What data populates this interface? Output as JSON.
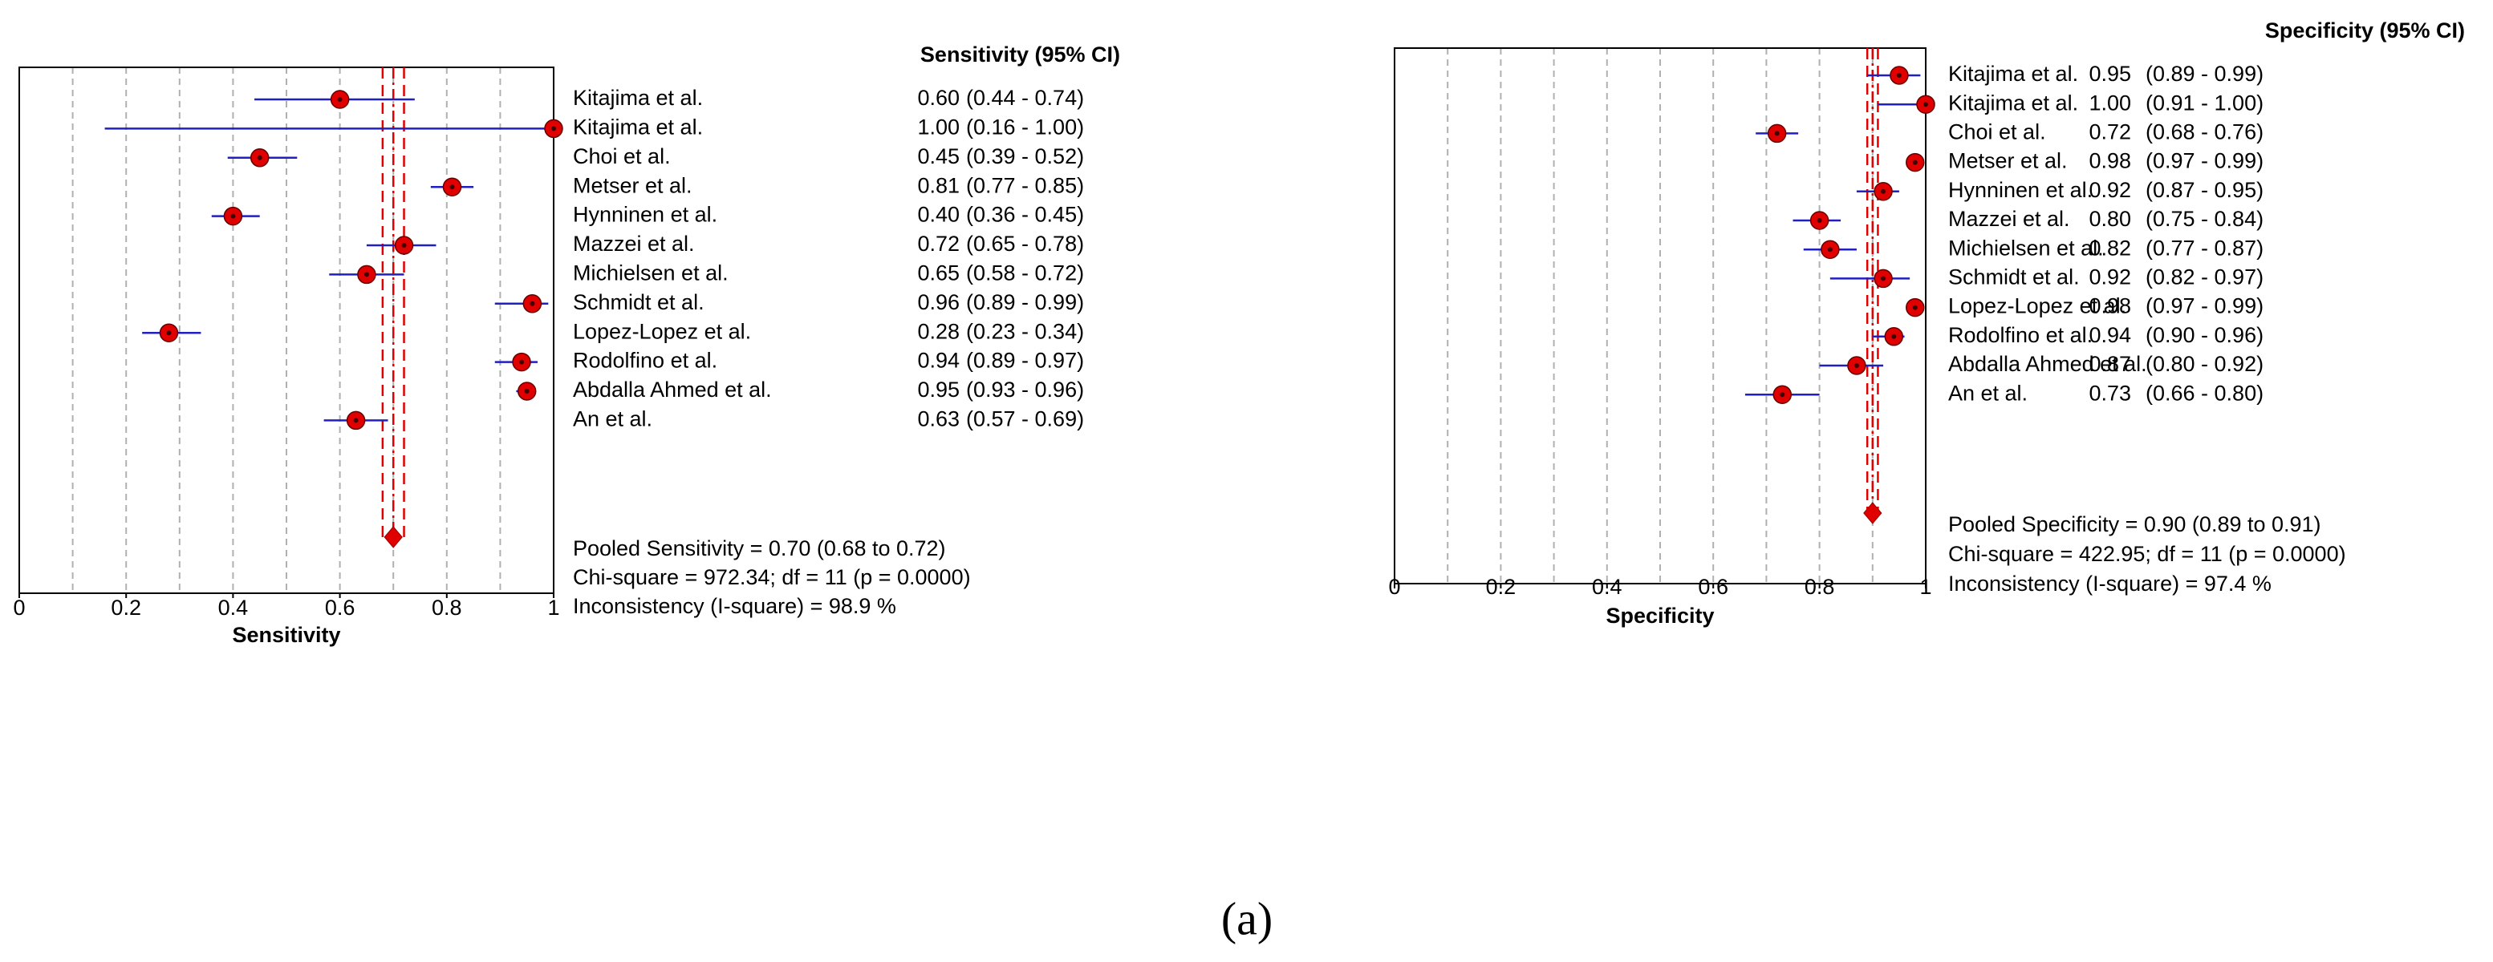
{
  "chart_data": [
    {
      "type": "forest",
      "title": "Sensitivity (95% CI)",
      "xlabel": "Sensitivity",
      "categories": [
        "Kitajima et al.",
        "Kitajima et al.",
        "Choi et al.",
        "Metser et al.",
        "Hynninen et al.",
        "Mazzei et al.",
        "Michielsen et al.",
        "Schmidt et al.",
        "Lopez-Lopez et al.",
        "Rodolfino et al.",
        "Abdalla Ahmed et al.",
        "An et al."
      ],
      "values": [
        0.6,
        1.0,
        0.45,
        0.81,
        0.4,
        0.72,
        0.65,
        0.96,
        0.28,
        0.94,
        0.95,
        0.63
      ],
      "value_labels": [
        "0.60",
        "1.00",
        "0.45",
        "0.81",
        "0.40",
        "0.72",
        "0.65",
        "0.96",
        "0.28",
        "0.94",
        "0.95",
        "0.63"
      ],
      "ci_lower": [
        0.44,
        0.16,
        0.39,
        0.77,
        0.36,
        0.65,
        0.58,
        0.89,
        0.23,
        0.89,
        0.93,
        0.57
      ],
      "ci_upper": [
        0.74,
        1.0,
        0.52,
        0.85,
        0.45,
        0.78,
        0.72,
        0.99,
        0.34,
        0.97,
        0.96,
        0.69
      ],
      "ci_labels": [
        "(0.44 - 0.74)",
        "(0.16 - 1.00)",
        "(0.39 - 0.52)",
        "(0.77 - 0.85)",
        "(0.36 - 0.45)",
        "(0.65 - 0.78)",
        "(0.58 - 0.72)",
        "(0.89 - 0.99)",
        "(0.23 - 0.34)",
        "(0.89 - 0.97)",
        "(0.93 - 0.96)",
        "(0.57 - 0.69)"
      ],
      "pooled": {
        "label": "Pooled Sensitivity = 0.70 (0.68 to 0.72)",
        "value": 0.7,
        "lower": 0.68,
        "upper": 0.72
      },
      "stats": [
        "Chi-square = 972.34; df =  11 (p = 0.0000)",
        "Inconsistency (I-square) = 98.9 %"
      ],
      "xlim": [
        0,
        1
      ],
      "xticks": [
        0,
        0.2,
        0.4,
        0.6,
        0.8,
        1
      ],
      "grid_lines": [
        0.1,
        0.2,
        0.3,
        0.4,
        0.5,
        0.6,
        0.7,
        0.8,
        0.9
      ],
      "marker_color": "#e00000",
      "ci_color": "#2020c0",
      "pooled_color": "#e00000"
    },
    {
      "type": "forest",
      "title": "Specificity (95% CI)",
      "xlabel": "Specificity",
      "categories": [
        "Kitajima et al.",
        "Kitajima et al.",
        "Choi et al.",
        "Metser et al.",
        "Hynninen et al.",
        "Mazzei et al.",
        "Michielsen et al.",
        "Schmidt et al.",
        "Lopez-Lopez et al.",
        "Rodolfino et al.",
        "Abdalla Ahmed et al.",
        "An et al."
      ],
      "values": [
        0.95,
        1.0,
        0.72,
        0.98,
        0.92,
        0.8,
        0.82,
        0.92,
        0.98,
        0.94,
        0.87,
        0.73
      ],
      "value_labels": [
        "0.95",
        "1.00",
        "0.72",
        "0.98",
        "0.92",
        "0.80",
        "0.82",
        "0.92",
        "0.98",
        "0.94",
        "0.87",
        "0.73"
      ],
      "ci_lower": [
        0.89,
        0.91,
        0.68,
        0.97,
        0.87,
        0.75,
        0.77,
        0.82,
        0.97,
        0.9,
        0.8,
        0.66
      ],
      "ci_upper": [
        0.99,
        1.0,
        0.76,
        0.99,
        0.95,
        0.84,
        0.87,
        0.97,
        0.99,
        0.96,
        0.92,
        0.8
      ],
      "ci_labels": [
        "(0.89 - 0.99)",
        "(0.91 - 1.00)",
        "(0.68 - 0.76)",
        "(0.97 - 0.99)",
        "(0.87 - 0.95)",
        "(0.75 - 0.84)",
        "(0.77 - 0.87)",
        "(0.82 - 0.97)",
        "(0.97 - 0.99)",
        "(0.90 - 0.96)",
        "(0.80 - 0.92)",
        "(0.66 - 0.80)"
      ],
      "pooled": {
        "label": "Pooled Specificity = 0.90 (0.89 to 0.91)",
        "value": 0.9,
        "lower": 0.89,
        "upper": 0.91
      },
      "stats": [
        "Chi-square = 422.95; df =  11 (p = 0.0000)",
        "Inconsistency (I-square) = 97.4 %"
      ],
      "xlim": [
        0,
        1
      ],
      "xticks": [
        0,
        0.2,
        0.4,
        0.6,
        0.8,
        1
      ],
      "grid_lines": [
        0.1,
        0.2,
        0.3,
        0.4,
        0.5,
        0.6,
        0.7,
        0.8,
        0.9
      ],
      "marker_color": "#e00000",
      "ci_color": "#2020c0",
      "pooled_color": "#e00000"
    }
  ],
  "caption": "(a)"
}
